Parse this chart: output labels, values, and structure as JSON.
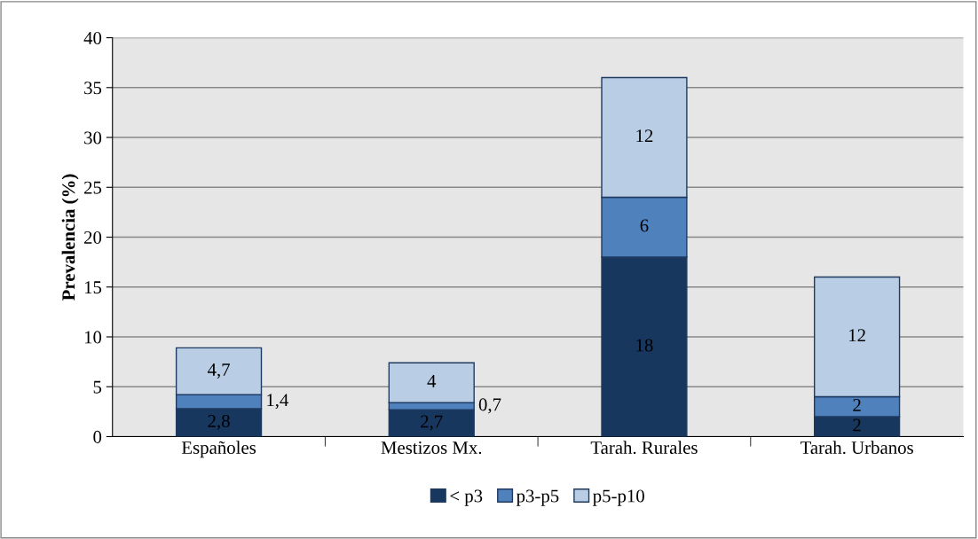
{
  "chart_data": {
    "type": "bar",
    "stacked": true,
    "ylabel": "Prevalencia (%)",
    "categories": [
      "Españoles",
      "Mestizos Mx.",
      "Tarah. Rurales",
      "Tarah. Urbanos"
    ],
    "series": [
      {
        "name": "< p3",
        "color": "#17375e",
        "values": [
          2.8,
          2.7,
          18,
          2
        ],
        "value_labels": [
          "2,8",
          "2,7",
          "18",
          "2"
        ]
      },
      {
        "name": "p3-p5",
        "color": "#4f81bd",
        "values": [
          1.4,
          0.7,
          6,
          2
        ],
        "value_labels": [
          "1,4",
          "0,7",
          "6",
          "2"
        ]
      },
      {
        "name": "p5-p10",
        "color": "#b9cde5",
        "values": [
          4.7,
          4,
          12,
          12
        ],
        "value_labels": [
          "4,7",
          "4",
          "12",
          "12"
        ]
      }
    ],
    "ylim": [
      0,
      40
    ],
    "yticks": [
      0,
      5,
      10,
      15,
      20,
      25,
      30,
      35,
      40
    ],
    "grid": "y",
    "legend": "bottom"
  }
}
